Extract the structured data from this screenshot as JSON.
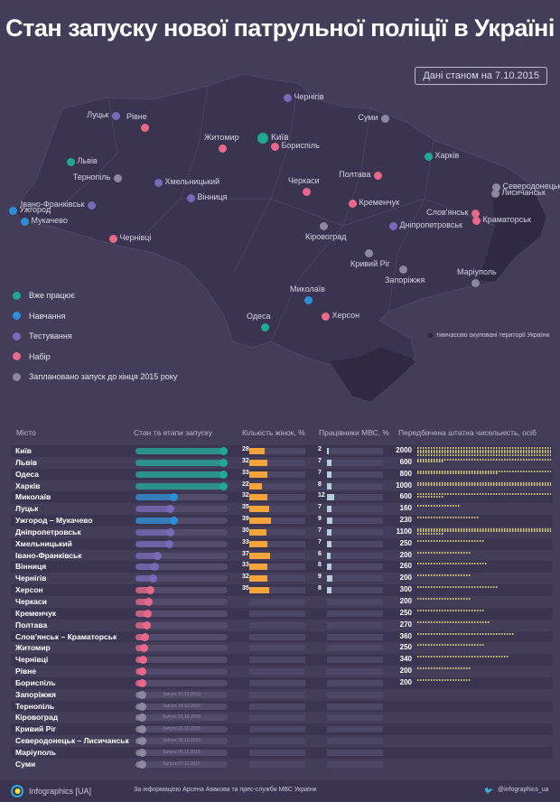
{
  "title": "Стан запуску нової патрульної поліції в Україні",
  "date_note": "Дані станом на 7.10.2015",
  "colors": {
    "working": "#1fa896",
    "training": "#2c8fd6",
    "testing": "#7a68b8",
    "recruiting": "#e8688a",
    "planned": "#8d87a0",
    "women": "#f3a53c",
    "mvs": "#b8cde0"
  },
  "legend": [
    {
      "label": "Вже працює",
      "status": "working"
    },
    {
      "label": "Навчання",
      "status": "training"
    },
    {
      "label": "Тестування",
      "status": "testing"
    },
    {
      "label": "Набір",
      "status": "recruiting"
    },
    {
      "label": "Заплановано запуск до кінця 2015 року",
      "status": "planned"
    }
  ],
  "occupied_label": "тимчасово окуповані території України",
  "map": {
    "cities": [
      {
        "name": "Київ",
        "status": "working"
      },
      {
        "name": "Чернігів",
        "status": "testing"
      },
      {
        "name": "Суми",
        "status": "planned"
      },
      {
        "name": "Луцьк",
        "status": "testing"
      },
      {
        "name": "Рівне",
        "status": "recruiting"
      },
      {
        "name": "Житомир",
        "status": "recruiting"
      },
      {
        "name": "Бориспіль",
        "status": "recruiting"
      },
      {
        "name": "Львів",
        "status": "working"
      },
      {
        "name": "Тернопіль",
        "status": "planned"
      },
      {
        "name": "Хмельницький",
        "status": "testing"
      },
      {
        "name": "Харків",
        "status": "working"
      },
      {
        "name": "Полтава",
        "status": "recruiting"
      },
      {
        "name": "Черкаси",
        "status": "recruiting"
      },
      {
        "name": "Кременчук",
        "status": "recruiting"
      },
      {
        "name": "Івано-Франківськ",
        "status": "testing"
      },
      {
        "name": "Вінниця",
        "status": "testing"
      },
      {
        "name": "Ужгород",
        "status": "training"
      },
      {
        "name": "Мукачево",
        "status": "training"
      },
      {
        "name": "Чернівці",
        "status": "recruiting"
      },
      {
        "name": "Кіровоград",
        "status": "planned"
      },
      {
        "name": "Дніпропетровськ",
        "status": "testing"
      },
      {
        "name": "Северодонецьк",
        "status": "planned"
      },
      {
        "name": "Лисичанськ",
        "status": "planned"
      },
      {
        "name": "Слов'янськ",
        "status": "recruiting"
      },
      {
        "name": "Краматорськ",
        "status": "recruiting"
      },
      {
        "name": "Кривий Ріг",
        "status": "planned"
      },
      {
        "name": "Запоріжжя",
        "status": "planned"
      },
      {
        "name": "Маріуполь",
        "status": "planned"
      },
      {
        "name": "Миколаїв",
        "status": "training"
      },
      {
        "name": "Одеса",
        "status": "working"
      },
      {
        "name": "Херсон",
        "status": "recruiting"
      }
    ]
  },
  "table": {
    "headers": {
      "city": "Місто",
      "stage": "Стан та етапи запуску",
      "women": "Кількість жінок, %",
      "mvs": "Працівники МВС, %",
      "staff": "Передбачена штатна чисельність, осіб"
    },
    "rows": [
      {
        "city": "Київ",
        "status": "working",
        "progress": 1.0,
        "women": 28,
        "mvs": 2,
        "staff": 2000
      },
      {
        "city": "Львів",
        "status": "working",
        "progress": 1.0,
        "women": 32,
        "mvs": 7,
        "staff": 600
      },
      {
        "city": "Одеса",
        "status": "working",
        "progress": 1.0,
        "women": 33,
        "mvs": 7,
        "staff": 800
      },
      {
        "city": "Харків",
        "status": "working",
        "progress": 1.0,
        "women": 22,
        "mvs": 8,
        "staff": 1000
      },
      {
        "city": "Миколаїв",
        "status": "training",
        "progress": 0.41,
        "women": 32,
        "mvs": 12,
        "staff": 600
      },
      {
        "city": "Луцьк",
        "status": "testing",
        "progress": 0.37,
        "women": 35,
        "mvs": 7,
        "staff": 160
      },
      {
        "city": "Ужгород – Мукачево",
        "status": "training",
        "progress": 0.41,
        "women": 39,
        "mvs": 9,
        "staff": 230
      },
      {
        "city": "Дніпропетровськ",
        "status": "testing",
        "progress": 0.37,
        "women": 30,
        "mvs": 7,
        "staff": 1100
      },
      {
        "city": "Хмельницький",
        "status": "testing",
        "progress": 0.36,
        "women": 33,
        "mvs": 7,
        "staff": 250
      },
      {
        "city": "Івано-Франківськ",
        "status": "testing",
        "progress": 0.22,
        "women": 37,
        "mvs": 6,
        "staff": 200
      },
      {
        "city": "Вінниця",
        "status": "testing",
        "progress": 0.18,
        "women": 33,
        "mvs": 8,
        "staff": 260
      },
      {
        "city": "Чернігів",
        "status": "testing",
        "progress": 0.16,
        "women": 32,
        "mvs": 9,
        "staff": 200
      },
      {
        "city": "Херсон",
        "status": "recruiting",
        "progress": 0.13,
        "women": 35,
        "mvs": 8,
        "staff": 300
      },
      {
        "city": "Черкаси",
        "status": "recruiting",
        "progress": 0.11,
        "staff": 200
      },
      {
        "city": "Кременчук",
        "status": "recruiting",
        "progress": 0.1,
        "staff": 250
      },
      {
        "city": "Полтава",
        "status": "recruiting",
        "progress": 0.09,
        "staff": 270
      },
      {
        "city": "Слов'янськ – Краматорськ",
        "status": "recruiting",
        "progress": 0.06,
        "staff": 360
      },
      {
        "city": "Житомир",
        "status": "recruiting",
        "progress": 0.05,
        "staff": 250
      },
      {
        "city": "Чернівці",
        "status": "recruiting",
        "progress": 0.04,
        "staff": 340
      },
      {
        "city": "Рівне",
        "status": "recruiting",
        "progress": 0.03,
        "staff": 200
      },
      {
        "city": "Бориспіль",
        "status": "recruiting",
        "progress": 0.03,
        "staff": 200
      },
      {
        "city": "Запоріжжя",
        "status": "planned",
        "progress": 0.03,
        "note": "Запуск 10.10.2015"
      },
      {
        "city": "Тернопіль",
        "status": "planned",
        "progress": 0.03,
        "note": "Запуск 14.10.2015"
      },
      {
        "city": "Кіровоград",
        "status": "planned",
        "progress": 0.03,
        "note": "Запуск 22.10.2015"
      },
      {
        "city": "Кривий Ріг",
        "status": "planned",
        "progress": 0.03,
        "note": "Запуск 22.10.2015"
      },
      {
        "city": "Северодонецьк – Лисичанськ",
        "status": "planned",
        "progress": 0.03,
        "note": "Запуск 29.10.2015"
      },
      {
        "city": "Маріуполь",
        "status": "planned",
        "progress": 0.03,
        "note": "Запуск 05.11.2015"
      },
      {
        "city": "Суми",
        "status": "planned",
        "progress": 0.03,
        "note": "Запуск 07.11.2015"
      }
    ]
  },
  "footer": {
    "brand": "Infographics [UA]",
    "source": "За інформацією Арсена Авакова та прес-служби МВС України",
    "twitter": "@infographics_ua"
  }
}
